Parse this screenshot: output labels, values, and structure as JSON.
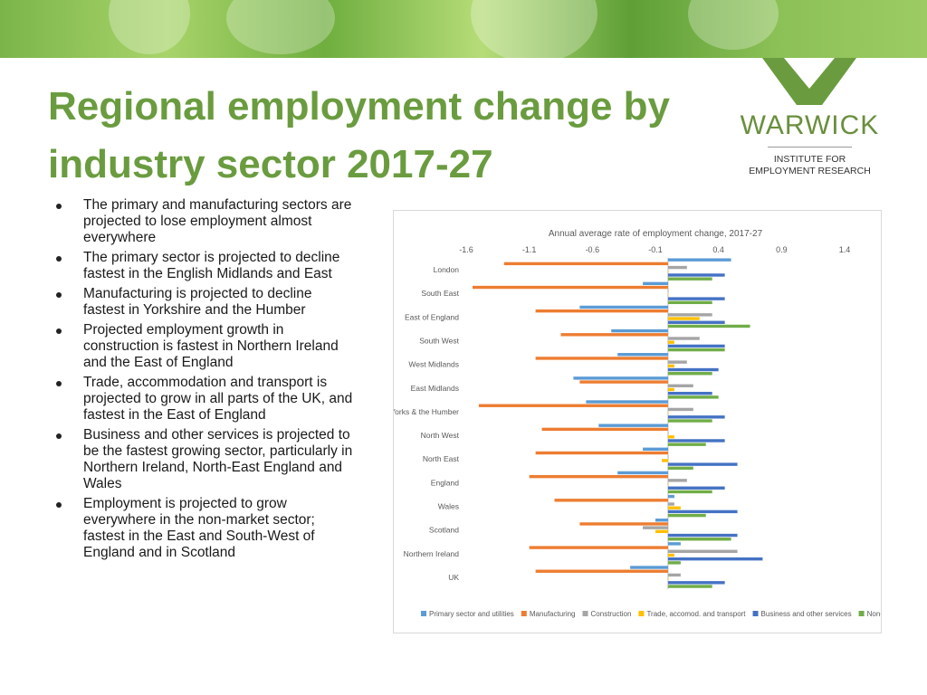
{
  "slide": {
    "title": "Regional employment change by industry sector 2017-27",
    "logo": {
      "name": "WARWICK",
      "subtitle_line1": "INSTITUTE FOR",
      "subtitle_line2": "EMPLOYMENT RESEARCH"
    },
    "bullets": [
      "The primary and manufacturing sectors are projected to lose employment almost everywhere",
      "The primary sector is projected to decline fastest in the English Midlands and East",
      "Manufacturing is projected to decline fastest in Yorkshire and the Humber",
      "Projected employment growth in construction is fastest in Northern Ireland and the East of England",
      "Trade, accommodation and transport is projected to grow in all parts of the UK, and fastest in the East of England",
      "Business and other services is projected to be the fastest growing sector, particularly in Northern Ireland, North-East England and Wales",
      "Employment is projected to grow everywhere in the non-market sector; fastest in the East and South-West of England and in Scotland"
    ]
  },
  "chart_data": {
    "type": "bar",
    "orientation": "horizontal",
    "title": "Annual average rate of employment change, 2017-27",
    "xlim": [
      -1.6,
      1.4
    ],
    "xticks": [
      "-1.6",
      "-1.1",
      "-0.6",
      "-0.1",
      "0.4",
      "0.9",
      "1.4"
    ],
    "legend_position": "bottom",
    "categories": [
      "London",
      "South East",
      "East of England",
      "South West",
      "West Midlands",
      "East Midlands",
      "Yorks & the Humber",
      "North West",
      "North East",
      "England",
      "Wales",
      "Scotland",
      "Northern Ireland",
      "UK"
    ],
    "series": [
      {
        "name": "Primary sector and utilities",
        "color": "#5b9bd5",
        "values": [
          0.5,
          -0.2,
          -0.7,
          -0.45,
          -0.4,
          -0.75,
          -0.65,
          -0.55,
          -0.2,
          -0.4,
          0.05,
          -0.1,
          0.1,
          -0.3
        ]
      },
      {
        "name": "Manufacturing",
        "color": "#ed7d31",
        "values": [
          -1.3,
          -1.55,
          -1.05,
          -0.85,
          -1.05,
          -0.7,
          -1.5,
          -1.0,
          -1.05,
          -1.1,
          -0.9,
          -0.7,
          -1.1,
          -1.05
        ]
      },
      {
        "name": "Construction",
        "color": "#a5a5a5",
        "values": [
          0.15,
          0.0,
          0.35,
          0.25,
          0.15,
          0.2,
          0.2,
          0.0,
          0.0,
          0.15,
          0.05,
          -0.2,
          0.55,
          0.1
        ]
      },
      {
        "name": "Trade, accomod. and transport",
        "color": "#ffc000",
        "values": [
          0.0,
          0.0,
          0.25,
          0.05,
          0.05,
          0.05,
          0.0,
          0.05,
          -0.05,
          0.0,
          0.1,
          -0.1,
          0.05,
          0.0
        ]
      },
      {
        "name": "Business and other services",
        "color": "#4472c4",
        "values": [
          0.45,
          0.45,
          0.45,
          0.45,
          0.4,
          0.35,
          0.45,
          0.45,
          0.55,
          0.45,
          0.55,
          0.55,
          0.75,
          0.45
        ]
      },
      {
        "name": "Non-market services",
        "color": "#70ad47",
        "values": [
          0.35,
          0.35,
          0.65,
          0.45,
          0.35,
          0.4,
          0.35,
          0.3,
          0.2,
          0.35,
          0.3,
          0.5,
          0.1,
          0.35
        ]
      }
    ]
  }
}
